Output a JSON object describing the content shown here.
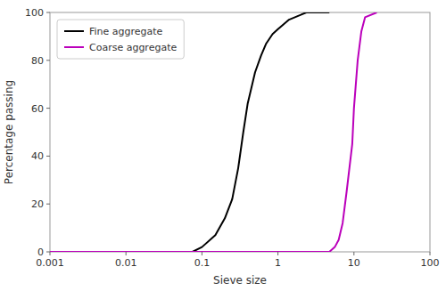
{
  "chart_data": {
    "type": "line",
    "log": "x",
    "grid": false,
    "legend": "upper left",
    "xlabel": "Sieve size",
    "ylabel": "Percentage passing",
    "xlim": [
      0.001,
      100
    ],
    "xticks": [
      0.001,
      0.01,
      0.1,
      1,
      10,
      100
    ],
    "ylim": [
      0,
      100
    ],
    "yticks": [
      0,
      20,
      40,
      60,
      80,
      100
    ],
    "series": [
      {
        "name": "Fine aggregate",
        "color": "#000000",
        "x": [
          0.001,
          0.01,
          0.075,
          0.1,
          0.15,
          0.2,
          0.25,
          0.3,
          0.35,
          0.4,
          0.5,
          0.6,
          0.7,
          0.85,
          1.0,
          1.18,
          1.4,
          2.0,
          2.36,
          4.75
        ],
        "values": [
          0,
          0,
          0,
          2,
          7,
          14,
          22,
          35,
          50,
          62,
          75,
          82,
          87,
          91,
          93,
          95,
          97,
          99,
          100,
          100
        ]
      },
      {
        "name": "Coarse aggregate",
        "color": "#BB00BB",
        "x": [
          0.001,
          0.01,
          0.1,
          1.0,
          4.75,
          5.6,
          6.3,
          7.1,
          8.0,
          9.5,
          10.0,
          11.2,
          12.5,
          14.0,
          20.0
        ],
        "values": [
          0,
          0,
          0,
          0,
          0,
          2,
          5,
          12,
          25,
          45,
          60,
          80,
          92,
          98,
          100
        ]
      }
    ]
  }
}
